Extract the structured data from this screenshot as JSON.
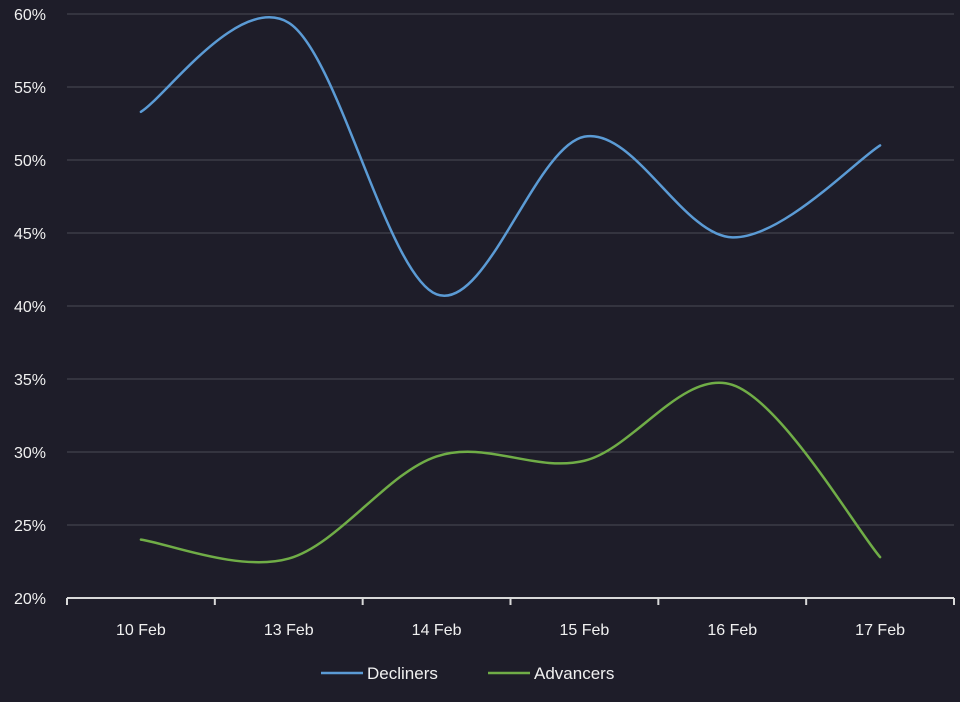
{
  "chart_data": {
    "type": "line",
    "title": "",
    "xlabel": "",
    "ylabel": "",
    "categories": [
      "10 Feb",
      "13 Feb",
      "14 Feb",
      "15 Feb",
      "16 Feb",
      "17 Feb"
    ],
    "yticks": [
      "20%",
      "25%",
      "30%",
      "35%",
      "40%",
      "45%",
      "50%",
      "55%",
      "60%"
    ],
    "ylim": [
      20,
      60
    ],
    "grid": true,
    "legend_position": "bottom",
    "series": [
      {
        "name": "Decliners",
        "color": "#5b9bd5",
        "values": [
          53.3,
          59.4,
          40.8,
          51.6,
          44.7,
          51.0
        ]
      },
      {
        "name": "Advancers",
        "color": "#70ad47",
        "values": [
          24.0,
          22.7,
          29.7,
          29.4,
          34.6,
          22.8
        ]
      }
    ]
  }
}
